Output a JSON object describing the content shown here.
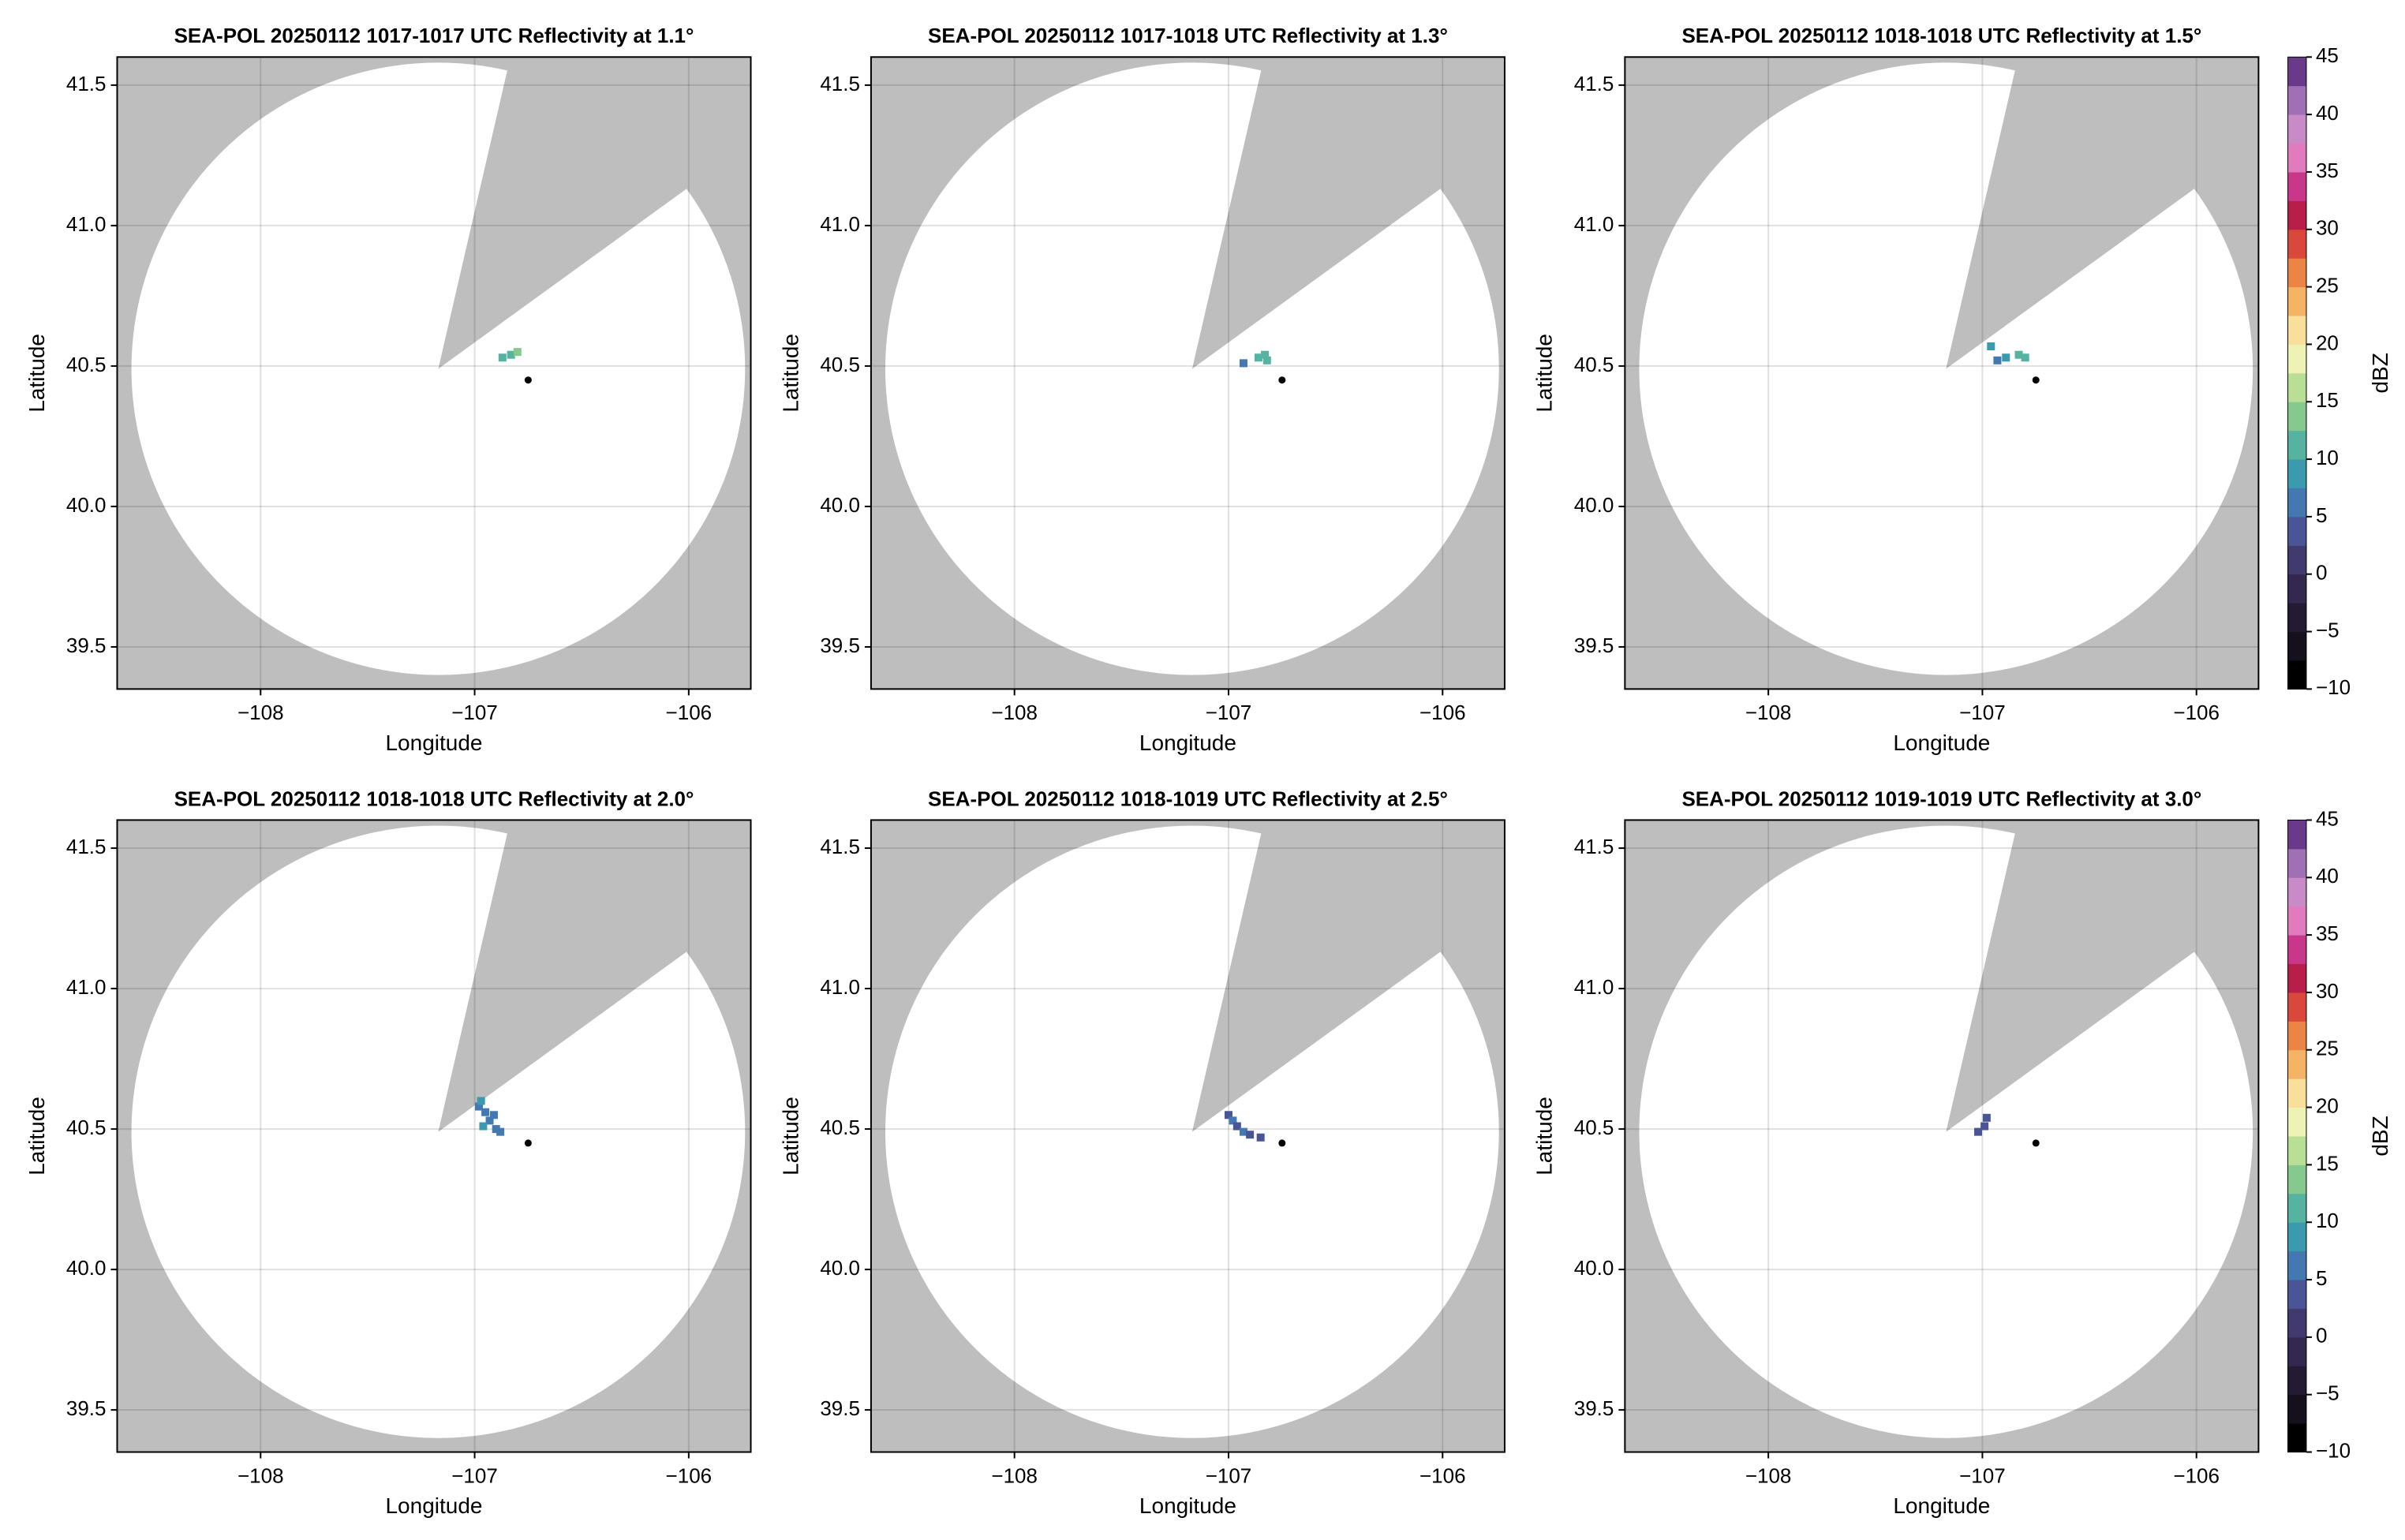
{
  "chart_data": [
    {
      "type": "ppi",
      "title": "SEA-POL 20250112 1017-1017 UTC Reflectivity at 1.1°",
      "xlabel": "Longitude",
      "ylabel": "Latitude",
      "xlim": [
        -108.67,
        -105.71
      ],
      "ylim": [
        39.35,
        41.6
      ],
      "xticks": [
        {
          "value": -108,
          "label": "−108"
        },
        {
          "value": -107,
          "label": "−107"
        },
        {
          "value": -106,
          "label": "−106"
        }
      ],
      "yticks": [
        39.5,
        {
          "value": 40,
          "label": "40.0"
        },
        40.5,
        {
          "value": 41,
          "label": "41.0"
        },
        41.5
      ],
      "grid": true,
      "center": [
        -107.17,
        40.49
      ],
      "range": 1.09,
      "blocked_azimuth": [
        13,
        54
      ],
      "marker": [
        -106.75,
        40.45
      ],
      "clim": [
        -10,
        45
      ],
      "cmap": [
        "#000000",
        "#15101c",
        "#241a33",
        "#33284d",
        "#403a6e",
        "#4a5596",
        "#4478b0",
        "#3c9aae",
        "#56b3a0",
        "#86c98e",
        "#b9de96",
        "#eef2b4",
        "#f9e09a",
        "#f5b366",
        "#ec8445",
        "#d9483a",
        "#b81e4a",
        "#c9378a",
        "#e07bbd",
        "#c98ac8",
        "#a070b4",
        "#6a3a8a"
      ],
      "points": {
        "x": [
          -106.87,
          -106.83,
          -106.8
        ],
        "y": [
          40.53,
          40.54,
          40.55
        ],
        "values": [
          12,
          11,
          13
        ]
      }
    },
    {
      "type": "ppi",
      "title": "SEA-POL 20250112 1017-1018 UTC Reflectivity at 1.3°",
      "xlabel": "Longitude",
      "ylabel": "Latitude",
      "xlim": [
        -108.67,
        -105.71
      ],
      "ylim": [
        39.35,
        41.6
      ],
      "xticks": [
        {
          "value": -108,
          "label": "−108"
        },
        {
          "value": -107,
          "label": "−107"
        },
        {
          "value": -106,
          "label": "−106"
        }
      ],
      "yticks": [
        39.5,
        {
          "value": 40,
          "label": "40.0"
        },
        40.5,
        {
          "value": 41,
          "label": "41.0"
        },
        41.5
      ],
      "grid": true,
      "center": [
        -107.17,
        40.49
      ],
      "range": 1.09,
      "blocked_azimuth": [
        13,
        54
      ],
      "marker": [
        -106.75,
        40.45
      ],
      "clim": [
        -10,
        45
      ],
      "cmap": [
        "#000000",
        "#15101c",
        "#241a33",
        "#33284d",
        "#403a6e",
        "#4a5596",
        "#4478b0",
        "#3c9aae",
        "#56b3a0",
        "#86c98e",
        "#b9de96",
        "#eef2b4",
        "#f9e09a",
        "#f5b366",
        "#ec8445",
        "#d9483a",
        "#b81e4a",
        "#c9378a",
        "#e07bbd",
        "#c98ac8",
        "#a070b4",
        "#6a3a8a"
      ],
      "points": {
        "x": [
          -106.93,
          -106.86,
          -106.83,
          -106.82
        ],
        "y": [
          40.51,
          40.53,
          40.54,
          40.52
        ],
        "values": [
          7,
          12,
          12,
          11
        ]
      }
    },
    {
      "type": "ppi",
      "title": "SEA-POL 20250112 1018-1018 UTC Reflectivity at 1.5°",
      "xlabel": "Longitude",
      "ylabel": "Latitude",
      "xlim": [
        -108.67,
        -105.71
      ],
      "ylim": [
        39.35,
        41.6
      ],
      "xticks": [
        {
          "value": -108,
          "label": "−108"
        },
        {
          "value": -107,
          "label": "−107"
        },
        {
          "value": -106,
          "label": "−106"
        }
      ],
      "yticks": [
        39.5,
        {
          "value": 40,
          "label": "40.0"
        },
        40.5,
        {
          "value": 41,
          "label": "41.0"
        },
        41.5
      ],
      "grid": true,
      "center": [
        -107.17,
        40.49
      ],
      "range": 1.09,
      "blocked_azimuth": [
        13,
        54
      ],
      "marker": [
        -106.75,
        40.45
      ],
      "clim": [
        -10,
        45
      ],
      "cmap": [
        "#000000",
        "#15101c",
        "#241a33",
        "#33284d",
        "#403a6e",
        "#4a5596",
        "#4478b0",
        "#3c9aae",
        "#56b3a0",
        "#86c98e",
        "#b9de96",
        "#eef2b4",
        "#f9e09a",
        "#f5b366",
        "#ec8445",
        "#d9483a",
        "#b81e4a",
        "#c9378a",
        "#e07bbd",
        "#c98ac8",
        "#a070b4",
        "#6a3a8a"
      ],
      "points": {
        "x": [
          -106.96,
          -106.93,
          -106.89,
          -106.83,
          -106.8
        ],
        "y": [
          40.57,
          40.52,
          40.53,
          40.54,
          40.53
        ],
        "values": [
          8,
          6,
          9,
          12,
          11
        ]
      },
      "colorbar": {
        "label": "dBZ",
        "ticks": [
          {
            "value": -10,
            "label": "−10"
          },
          {
            "value": -5,
            "label": "−5"
          },
          0,
          5,
          10,
          15,
          20,
          25,
          30,
          35,
          40,
          45
        ]
      }
    },
    {
      "type": "ppi",
      "title": "SEA-POL 20250112 1018-1018 UTC Reflectivity at 2.0°",
      "xlabel": "Longitude",
      "ylabel": "Latitude",
      "xlim": [
        -108.67,
        -105.71
      ],
      "ylim": [
        39.35,
        41.6
      ],
      "xticks": [
        {
          "value": -108,
          "label": "−108"
        },
        {
          "value": -107,
          "label": "−107"
        },
        {
          "value": -106,
          "label": "−106"
        }
      ],
      "yticks": [
        39.5,
        {
          "value": 40,
          "label": "40.0"
        },
        40.5,
        {
          "value": 41,
          "label": "41.0"
        },
        41.5
      ],
      "grid": true,
      "center": [
        -107.17,
        40.49
      ],
      "range": 1.09,
      "blocked_azimuth": [
        13,
        54
      ],
      "marker": [
        -106.75,
        40.45
      ],
      "clim": [
        -10,
        45
      ],
      "cmap": [
        "#000000",
        "#15101c",
        "#241a33",
        "#33284d",
        "#403a6e",
        "#4a5596",
        "#4478b0",
        "#3c9aae",
        "#56b3a0",
        "#86c98e",
        "#b9de96",
        "#eef2b4",
        "#f9e09a",
        "#f5b366",
        "#ec8445",
        "#d9483a",
        "#b81e4a",
        "#c9378a",
        "#e07bbd",
        "#c98ac8",
        "#a070b4",
        "#6a3a8a"
      ],
      "points": {
        "x": [
          -106.98,
          -106.95,
          -106.93,
          -106.9,
          -106.88,
          -106.96,
          -106.91,
          -106.97
        ],
        "y": [
          40.58,
          40.56,
          40.53,
          40.5,
          40.49,
          40.51,
          40.55,
          40.6
        ],
        "values": [
          7,
          6,
          5,
          6,
          5,
          8,
          7,
          9
        ]
      }
    },
    {
      "type": "ppi",
      "title": "SEA-POL 20250112 1018-1019 UTC Reflectivity at 2.5°",
      "xlabel": "Longitude",
      "ylabel": "Latitude",
      "xlim": [
        -108.67,
        -105.71
      ],
      "ylim": [
        39.35,
        41.6
      ],
      "xticks": [
        {
          "value": -108,
          "label": "−108"
        },
        {
          "value": -107,
          "label": "−107"
        },
        {
          "value": -106,
          "label": "−106"
        }
      ],
      "yticks": [
        39.5,
        {
          "value": 40,
          "label": "40.0"
        },
        40.5,
        {
          "value": 41,
          "label": "41.0"
        },
        41.5
      ],
      "grid": true,
      "center": [
        -107.17,
        40.49
      ],
      "range": 1.09,
      "blocked_azimuth": [
        13,
        54
      ],
      "marker": [
        -106.75,
        40.45
      ],
      "clim": [
        -10,
        45
      ],
      "cmap": [
        "#000000",
        "#15101c",
        "#241a33",
        "#33284d",
        "#403a6e",
        "#4a5596",
        "#4478b0",
        "#3c9aae",
        "#56b3a0",
        "#86c98e",
        "#b9de96",
        "#eef2b4",
        "#f9e09a",
        "#f5b366",
        "#ec8445",
        "#d9483a",
        "#b81e4a",
        "#c9378a",
        "#e07bbd",
        "#c98ac8",
        "#a070b4",
        "#6a3a8a"
      ],
      "points": {
        "x": [
          -107.0,
          -106.98,
          -106.96,
          -106.93,
          -106.9,
          -106.85
        ],
        "y": [
          40.55,
          40.53,
          40.51,
          40.49,
          40.48,
          40.47
        ],
        "values": [
          4,
          5,
          4,
          5,
          3,
          4
        ]
      }
    },
    {
      "type": "ppi",
      "title": "SEA-POL 20250112 1019-1019 UTC Reflectivity at 3.0°",
      "xlabel": "Longitude",
      "ylabel": "Latitude",
      "xlim": [
        -108.67,
        -105.71
      ],
      "ylim": [
        39.35,
        41.6
      ],
      "xticks": [
        {
          "value": -108,
          "label": "−108"
        },
        {
          "value": -107,
          "label": "−107"
        },
        {
          "value": -106,
          "label": "−106"
        }
      ],
      "yticks": [
        39.5,
        {
          "value": 40,
          "label": "40.0"
        },
        40.5,
        {
          "value": 41,
          "label": "41.0"
        },
        41.5
      ],
      "grid": true,
      "center": [
        -107.17,
        40.49
      ],
      "range": 1.09,
      "blocked_azimuth": [
        13,
        54
      ],
      "marker": [
        -106.75,
        40.45
      ],
      "clim": [
        -10,
        45
      ],
      "cmap": [
        "#000000",
        "#15101c",
        "#241a33",
        "#33284d",
        "#403a6e",
        "#4a5596",
        "#4478b0",
        "#3c9aae",
        "#56b3a0",
        "#86c98e",
        "#b9de96",
        "#eef2b4",
        "#f9e09a",
        "#f5b366",
        "#ec8445",
        "#d9483a",
        "#b81e4a",
        "#c9378a",
        "#e07bbd",
        "#c98ac8",
        "#a070b4",
        "#6a3a8a"
      ],
      "points": {
        "x": [
          -106.98,
          -106.99,
          -107.02
        ],
        "y": [
          40.54,
          40.51,
          40.49
        ],
        "values": [
          3,
          4,
          3
        ]
      },
      "colorbar": {
        "label": "dBZ",
        "ticks": [
          {
            "value": -10,
            "label": "−10"
          },
          {
            "value": -5,
            "label": "−5"
          },
          0,
          5,
          10,
          15,
          20,
          25,
          30,
          35,
          40,
          45
        ]
      }
    }
  ]
}
